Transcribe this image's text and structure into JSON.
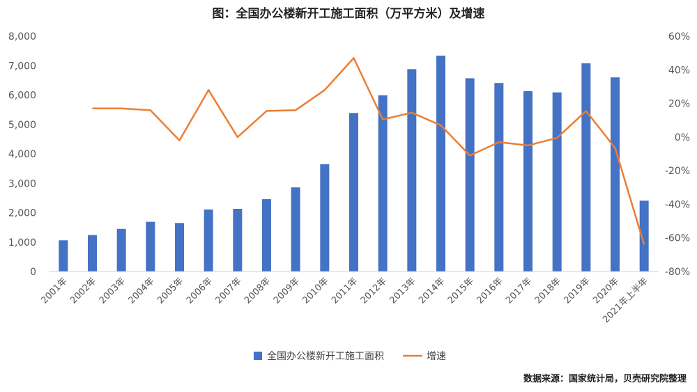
{
  "chart_data": {
    "type": "bar",
    "title": "图：全国办公楼新开工施工面积（万平方米）及增速",
    "categories": [
      "2001年",
      "2002年",
      "2003年",
      "2004年",
      "2005年",
      "2006年",
      "2007年",
      "2008年",
      "2009年",
      "2010年",
      "2011年",
      "2012年",
      "2013年",
      "2014年",
      "2015年",
      "2016年",
      "2017年",
      "2018年",
      "2019年",
      "2020年",
      "2021年上半年"
    ],
    "series": [
      {
        "name": "全国办公楼新开工施工面积",
        "type": "bar",
        "axis": "left",
        "color": "#4472C4",
        "values": [
          1060,
          1240,
          1450,
          1690,
          1650,
          2110,
          2130,
          2460,
          2860,
          3650,
          5390,
          5990,
          6880,
          7340,
          6570,
          6410,
          6130,
          6090,
          7080,
          6600,
          2410
        ]
      },
      {
        "name": "增速",
        "type": "line",
        "axis": "right",
        "color": "#ED7D31",
        "values": [
          null,
          17,
          17,
          16,
          -2,
          28,
          0,
          15.5,
          16,
          28,
          47,
          10.5,
          14.5,
          7,
          -11,
          -3,
          -5,
          -0.5,
          15.5,
          -6.5,
          -64
        ]
      }
    ],
    "y_left": {
      "min": 0,
      "max": 8000,
      "step": 1000,
      "ticks": [
        "0",
        "1,000",
        "2,000",
        "3,000",
        "4,000",
        "5,000",
        "6,000",
        "7,000",
        "8,000"
      ]
    },
    "y_right": {
      "min": -80,
      "max": 60,
      "step": 20,
      "ticks": [
        "-80%",
        "-60%",
        "-40%",
        "-20%",
        "0%",
        "20%",
        "40%",
        "60%"
      ]
    },
    "grid": false,
    "legend_position": "bottom"
  },
  "source_note": "数据来源：国家统计局，贝壳研究院整理"
}
